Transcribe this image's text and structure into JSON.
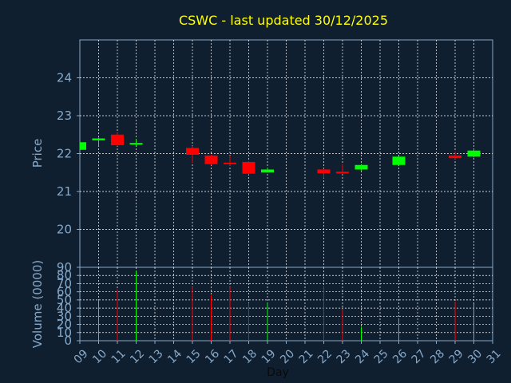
{
  "chart_data": [
    {
      "type": "candlestick",
      "title": "CSWC - last updated 30/12/2025",
      "ylabel": "Price",
      "ylim": [
        19,
        25
      ],
      "yticks": [
        "20",
        "21",
        "22",
        "23",
        "24"
      ],
      "grid": true,
      "colors": {
        "up": "#00ff00",
        "down": "#ff0000",
        "grid": "#ffffff",
        "frame": "#87a9c9",
        "background": "#0f1f30"
      },
      "candles": [
        {
          "day": 9,
          "open": 22.1,
          "high": 22.3,
          "low": 22.1,
          "close": 22.3
        },
        {
          "day": 10,
          "open": 22.35,
          "high": 22.42,
          "low": 22.2,
          "close": 22.4
        },
        {
          "day": 11,
          "open": 22.5,
          "high": 22.55,
          "low": 22.2,
          "close": 22.22
        },
        {
          "day": 12,
          "open": 22.25,
          "high": 22.38,
          "low": 22.2,
          "close": 22.28
        },
        {
          "day": 15,
          "open": 22.15,
          "high": 22.2,
          "low": 21.75,
          "close": 21.97
        },
        {
          "day": 16,
          "open": 21.95,
          "high": 21.97,
          "low": 21.7,
          "close": 21.72
        },
        {
          "day": 17,
          "open": 21.76,
          "high": 21.95,
          "low": 21.68,
          "close": 21.72
        },
        {
          "day": 18,
          "open": 21.78,
          "high": 21.8,
          "low": 21.45,
          "close": 21.47
        },
        {
          "day": 19,
          "open": 21.5,
          "high": 21.62,
          "low": 21.5,
          "close": 21.58
        },
        {
          "day": 22,
          "open": 21.58,
          "high": 21.6,
          "low": 21.35,
          "close": 21.48
        },
        {
          "day": 23,
          "open": 21.52,
          "high": 21.72,
          "low": 21.48,
          "close": 21.5
        },
        {
          "day": 24,
          "open": 21.58,
          "high": 21.72,
          "low": 21.55,
          "close": 21.7
        },
        {
          "day": 26,
          "open": 21.7,
          "high": 21.92,
          "low": 21.7,
          "close": 21.92
        },
        {
          "day": 29,
          "open": 21.95,
          "high": 22.05,
          "low": 21.85,
          "close": 21.88
        },
        {
          "day": 30,
          "open": 21.92,
          "high": 22.12,
          "low": 21.9,
          "close": 22.08
        }
      ]
    },
    {
      "type": "bar",
      "ylabel": "Volume (0000)",
      "xlabel": "Day",
      "ylim": [
        0,
        90
      ],
      "yticks": [
        "0",
        "10",
        "20",
        "30",
        "40",
        "50",
        "60",
        "70",
        "80",
        "90"
      ],
      "xticks": [
        "09",
        "10",
        "11",
        "12",
        "13",
        "14",
        "15",
        "16",
        "17",
        "18",
        "19",
        "20",
        "21",
        "22",
        "23",
        "24",
        "25",
        "26",
        "27",
        "28",
        "29",
        "30",
        "31"
      ],
      "grid": true,
      "bars": [
        {
          "day": 10,
          "value": 50,
          "direction": "up"
        },
        {
          "day": 11,
          "value": 63,
          "direction": "down"
        },
        {
          "day": 12,
          "value": 86,
          "direction": "up"
        },
        {
          "day": 15,
          "value": 66,
          "direction": "down"
        },
        {
          "day": 16,
          "value": 56,
          "direction": "down"
        },
        {
          "day": 17,
          "value": 66,
          "direction": "down"
        },
        {
          "day": 18,
          "value": 46,
          "direction": "down"
        },
        {
          "day": 19,
          "value": 47,
          "direction": "up"
        },
        {
          "day": 22,
          "value": 67,
          "direction": "down"
        },
        {
          "day": 23,
          "value": 39,
          "direction": "down"
        },
        {
          "day": 24,
          "value": 17,
          "direction": "up"
        },
        {
          "day": 26,
          "value": 27,
          "direction": "up"
        },
        {
          "day": 29,
          "value": 48,
          "direction": "down"
        },
        {
          "day": 30,
          "value": 45,
          "direction": "up"
        }
      ]
    }
  ]
}
